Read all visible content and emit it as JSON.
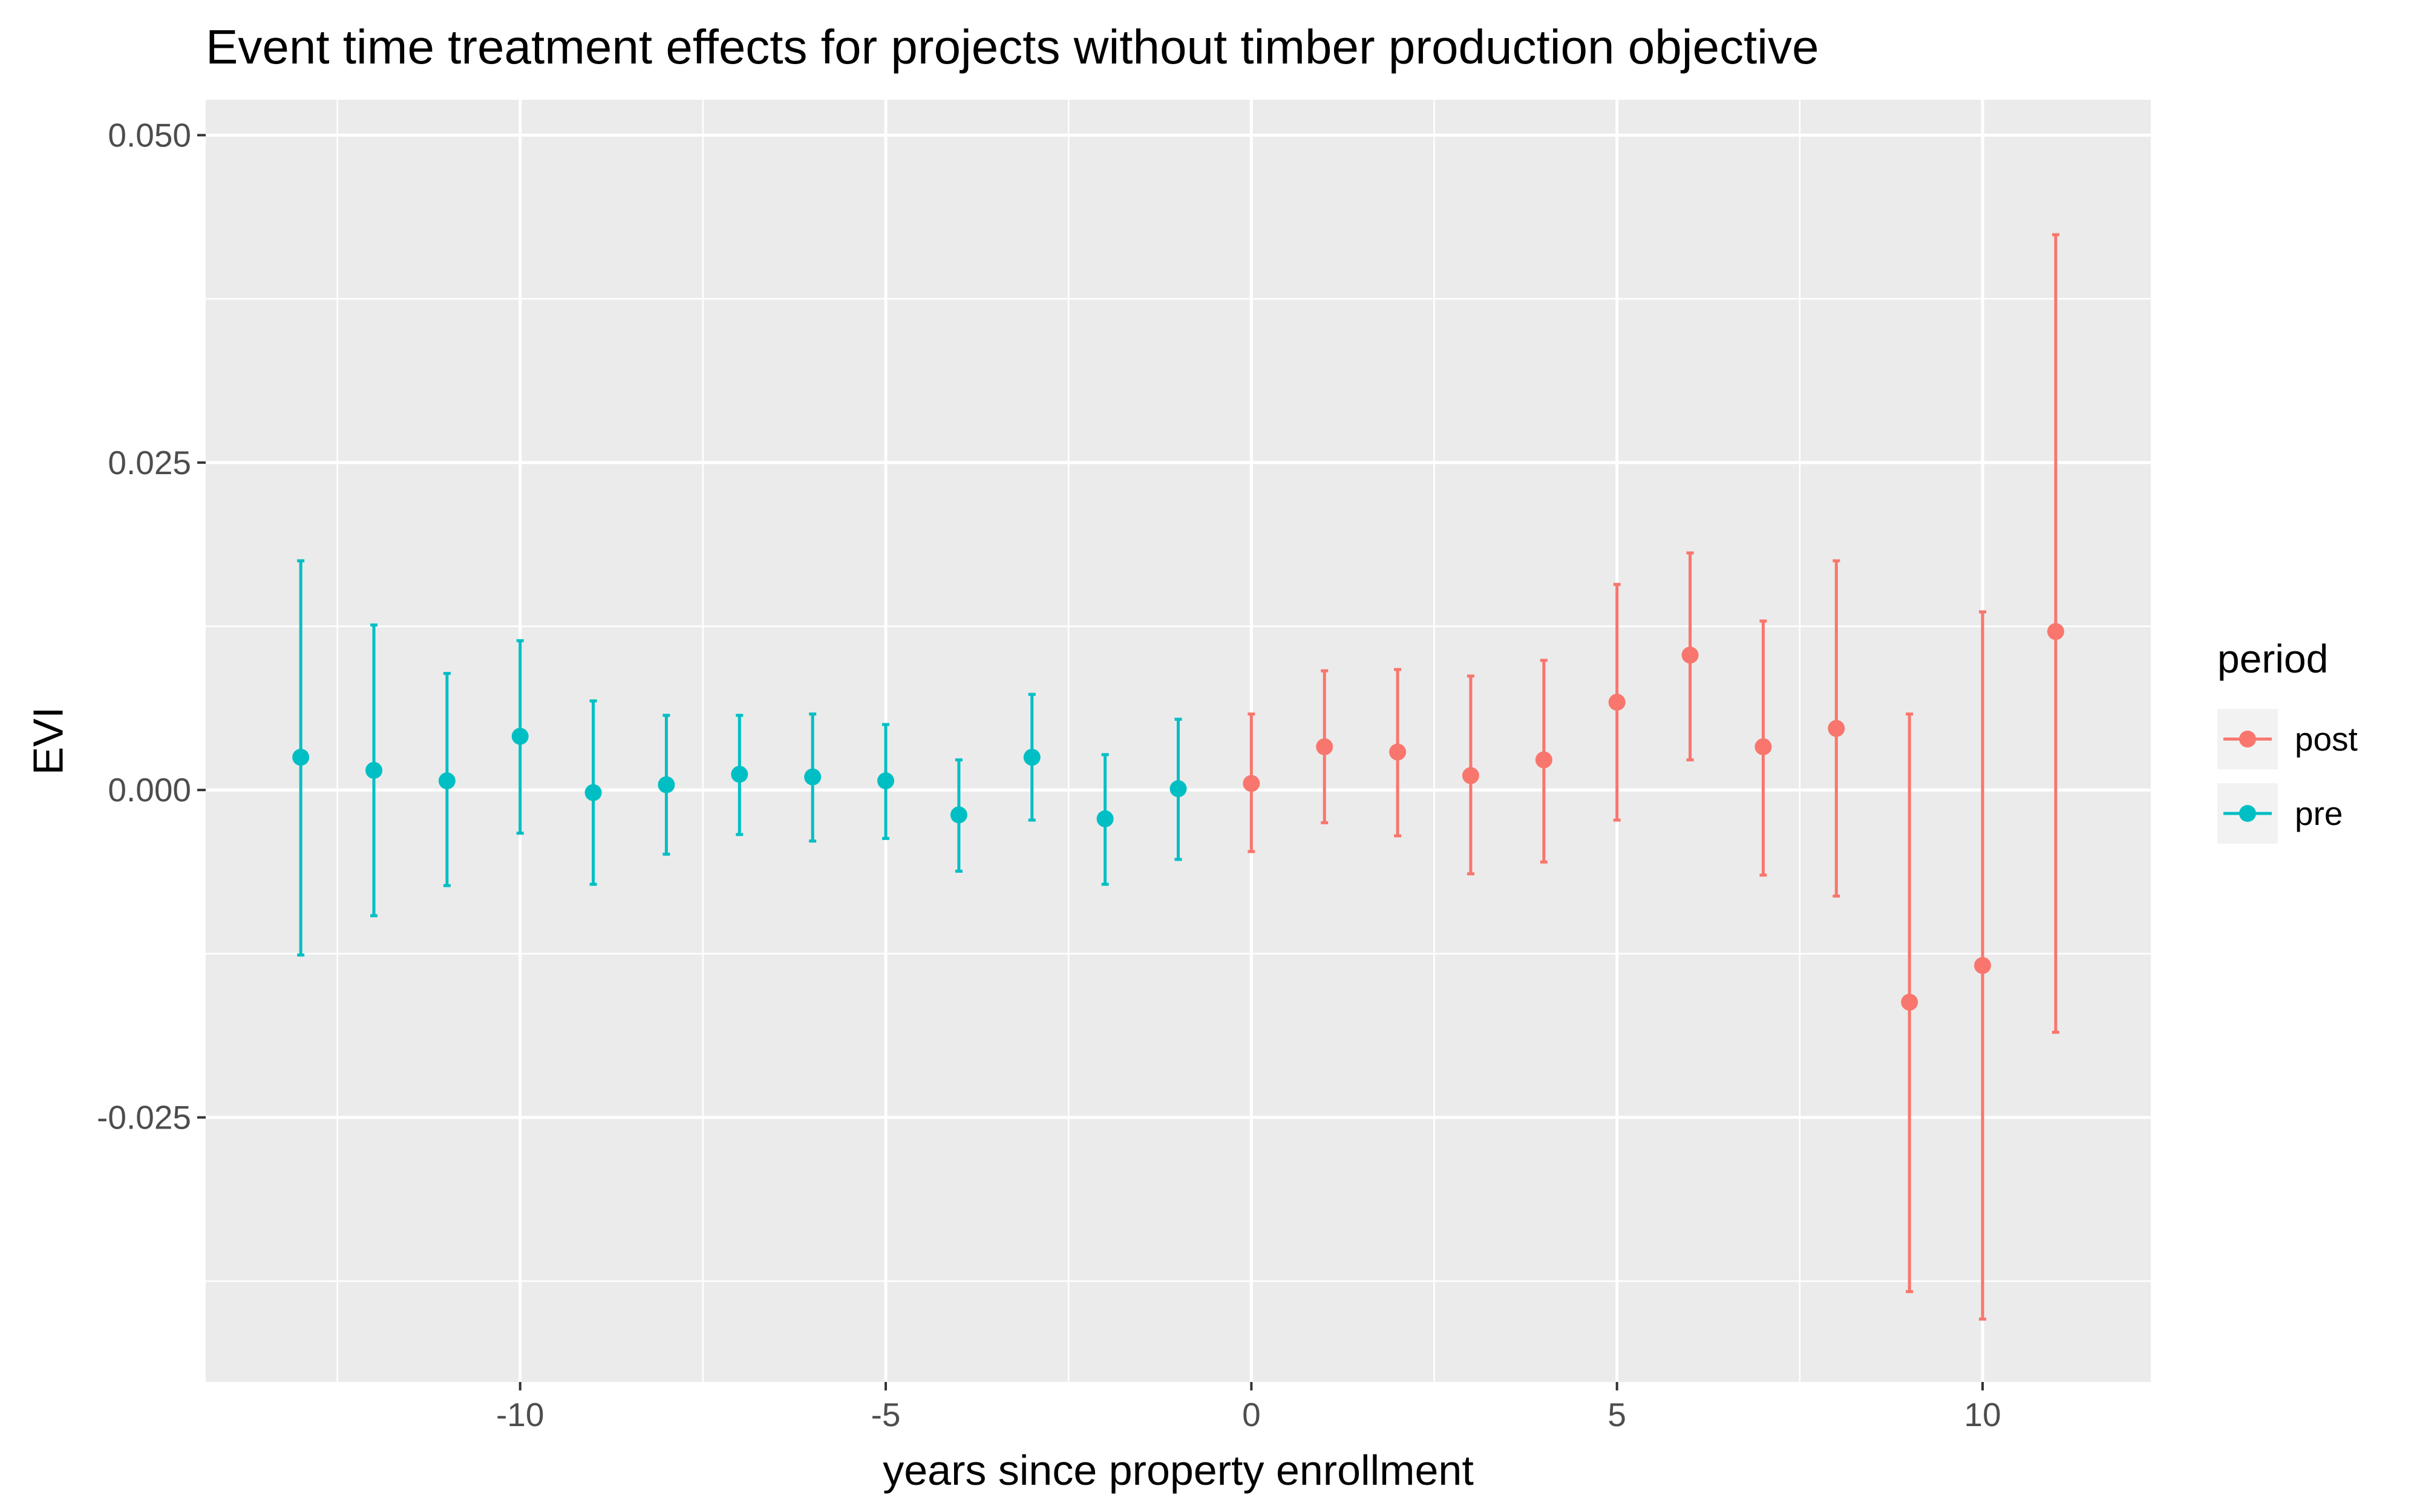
{
  "chart_data": {
    "type": "scatter",
    "title": "Event time treatment effects for projects without timber production objective",
    "xlabel": "years since property enrollment",
    "ylabel": "EVI",
    "xlim": [
      -14.3,
      12.3
    ],
    "ylim": [
      -0.0452,
      0.0527
    ],
    "x_ticks": [
      -10,
      -5,
      0,
      5,
      10
    ],
    "x_tick_labels": [
      "-10",
      "-5",
      "0",
      "5",
      "10"
    ],
    "y_ticks": [
      -0.025,
      0.0,
      0.025,
      0.05
    ],
    "y_tick_labels": [
      "-0.025",
      "0.000",
      "0.025",
      "0.050"
    ],
    "grid": true,
    "legend": {
      "title": "period",
      "position": "right",
      "entries": [
        "post",
        "pre"
      ]
    },
    "series": [
      {
        "name": "post",
        "color": "#F8766D",
        "points": [
          {
            "x": 0,
            "y": 0.0005,
            "ymin": -0.0047,
            "ymax": 0.0058
          },
          {
            "x": 1,
            "y": 0.0033,
            "ymin": -0.0025,
            "ymax": 0.0091
          },
          {
            "x": 2,
            "y": 0.0029,
            "ymin": -0.0035,
            "ymax": 0.0092
          },
          {
            "x": 3,
            "y": 0.0011,
            "ymin": -0.0064,
            "ymax": 0.0087
          },
          {
            "x": 4,
            "y": 0.0023,
            "ymin": -0.0055,
            "ymax": 0.0099
          },
          {
            "x": 5,
            "y": 0.0067,
            "ymin": -0.0023,
            "ymax": 0.0157
          },
          {
            "x": 6,
            "y": 0.0103,
            "ymin": 0.0023,
            "ymax": 0.0181
          },
          {
            "x": 7,
            "y": 0.0033,
            "ymin": -0.0065,
            "ymax": 0.0129
          },
          {
            "x": 8,
            "y": 0.0047,
            "ymin": -0.0081,
            "ymax": 0.0175
          },
          {
            "x": 9,
            "y": -0.0162,
            "ymin": -0.0383,
            "ymax": 0.0058
          },
          {
            "x": 10,
            "y": -0.0134,
            "ymin": -0.0404,
            "ymax": 0.0136
          },
          {
            "x": 11,
            "y": 0.0121,
            "ymin": -0.0185,
            "ymax": 0.0424
          }
        ]
      },
      {
        "name": "pre",
        "color": "#00BFC4",
        "points": [
          {
            "x": -13,
            "y": 0.0025,
            "ymin": -0.0126,
            "ymax": 0.0175
          },
          {
            "x": -12,
            "y": 0.0015,
            "ymin": -0.0096,
            "ymax": 0.0126
          },
          {
            "x": -11,
            "y": 0.0007,
            "ymin": -0.0073,
            "ymax": 0.0089
          },
          {
            "x": -10,
            "y": 0.0041,
            "ymin": -0.0033,
            "ymax": 0.0114
          },
          {
            "x": -9,
            "y": -0.0002,
            "ymin": -0.0072,
            "ymax": 0.0068
          },
          {
            "x": -8,
            "y": 0.0004,
            "ymin": -0.0049,
            "ymax": 0.0057
          },
          {
            "x": -7,
            "y": 0.0012,
            "ymin": -0.0034,
            "ymax": 0.0057
          },
          {
            "x": -6,
            "y": 0.001,
            "ymin": -0.0039,
            "ymax": 0.0058
          },
          {
            "x": -5,
            "y": 0.0007,
            "ymin": -0.0037,
            "ymax": 0.005
          },
          {
            "x": -4,
            "y": -0.0019,
            "ymin": -0.0062,
            "ymax": 0.0023
          },
          {
            "x": -3,
            "y": 0.0025,
            "ymin": -0.0023,
            "ymax": 0.0073
          },
          {
            "x": -2,
            "y": -0.0022,
            "ymin": -0.0072,
            "ymax": 0.0027
          },
          {
            "x": -1,
            "y": 0.0001,
            "ymin": -0.0053,
            "ymax": 0.0054
          }
        ]
      }
    ]
  }
}
